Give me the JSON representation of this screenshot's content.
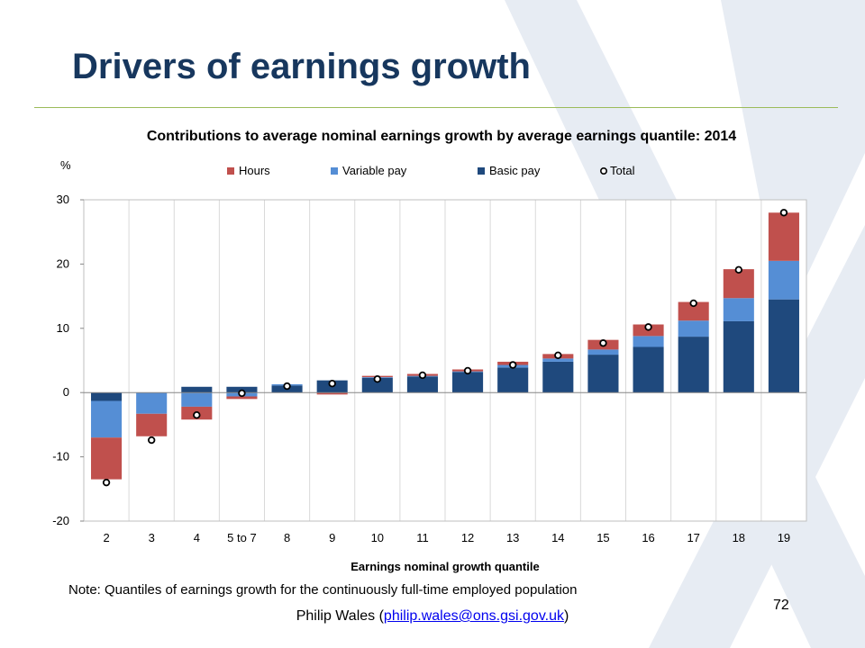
{
  "slide": {
    "title": "Drivers of earnings growth",
    "note": "Note: Quantiles of earnings growth for the continuously full-time employed population",
    "author_prefix": "Philip Wales (",
    "author_email": "philip.wales@ons.gsi.gov.uk",
    "author_suffix": ")",
    "page_number": "72"
  },
  "chart_data": {
    "type": "bar",
    "stacked": true,
    "title": "Contributions to average nominal earnings growth by average earnings quantile: 2014",
    "ylabel": "%",
    "xlabel": "Earnings nominal growth quantile",
    "ylim": [
      -20,
      30
    ],
    "yticks": [
      -20,
      -10,
      0,
      10,
      20,
      30
    ],
    "grid": "vertical",
    "legend_position": "top",
    "categories": [
      "2",
      "3",
      "4",
      "5 to 7",
      "8",
      "9",
      "10",
      "11",
      "12",
      "13",
      "14",
      "15",
      "16",
      "17",
      "18",
      "19"
    ],
    "series": [
      {
        "name": "Hours",
        "color": "#c0504d",
        "values": [
          -6.5,
          -3.5,
          -2.0,
          -0.4,
          0.0,
          -0.3,
          0.2,
          0.3,
          0.3,
          0.5,
          0.7,
          1.5,
          1.8,
          2.9,
          4.5,
          7.5
        ]
      },
      {
        "name": "Variable pay",
        "color": "#558ed5",
        "values": [
          -5.7,
          -3.3,
          -2.2,
          -0.6,
          0.2,
          0.0,
          0.1,
          0.1,
          0.1,
          0.4,
          0.5,
          0.8,
          1.7,
          2.5,
          3.6,
          6.0
        ]
      },
      {
        "name": "Basic pay",
        "color": "#1f497d",
        "values": [
          -1.3,
          0.0,
          0.9,
          0.9,
          1.1,
          1.9,
          2.3,
          2.5,
          3.2,
          3.9,
          4.8,
          5.9,
          7.1,
          8.7,
          11.1,
          14.5
        ]
      }
    ],
    "total": {
      "name": "Total",
      "values": [
        -14.0,
        -7.4,
        -3.5,
        -0.1,
        1.0,
        1.4,
        2.1,
        2.7,
        3.4,
        4.3,
        5.8,
        7.7,
        10.2,
        13.9,
        19.1,
        28.0
      ]
    }
  }
}
